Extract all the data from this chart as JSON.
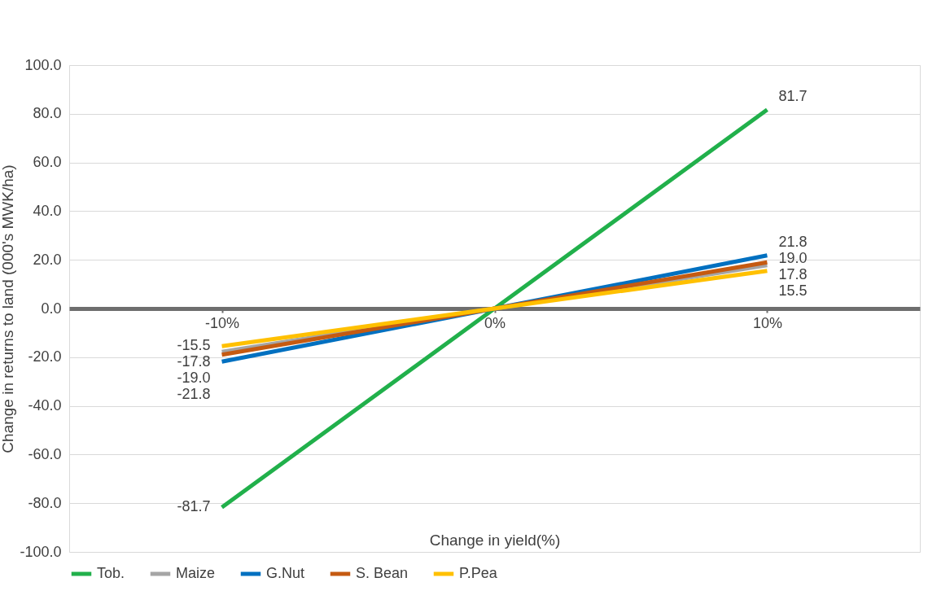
{
  "chart_data": {
    "type": "line",
    "xlabel": "Change in yield(%)",
    "ylabel": "Change in returns to land (000's MWK/ha)",
    "categories": [
      "-10%",
      "0%",
      "10%"
    ],
    "series": [
      {
        "name": "Tob.",
        "color": "#21b04b",
        "values": [
          -81.7,
          0,
          81.7
        ],
        "value_labels": [
          "-81.7",
          null,
          "81.7"
        ]
      },
      {
        "name": "Maize",
        "color": "#a5a5a5",
        "values": [
          -17.8,
          0,
          17.8
        ],
        "value_labels": [
          "-17.8",
          null,
          "17.8"
        ]
      },
      {
        "name": "G.Nut",
        "color": "#0070c0",
        "values": [
          -21.8,
          0,
          21.8
        ],
        "value_labels": [
          "-21.8",
          null,
          "21.8"
        ]
      },
      {
        "name": "S. Bean",
        "color": "#c55a11",
        "values": [
          -19.0,
          0,
          19.0
        ],
        "value_labels": [
          "-19.0",
          null,
          "19.0"
        ]
      },
      {
        "name": "P.Pea",
        "color": "#ffc000",
        "values": [
          -15.5,
          0,
          15.5
        ],
        "value_labels": [
          "-15.5",
          null,
          "15.5"
        ]
      }
    ],
    "ylim": [
      -100,
      100
    ],
    "yticks": [
      {
        "value": -100,
        "label": "-100.0"
      },
      {
        "value": -80,
        "label": "-80.0"
      },
      {
        "value": -60,
        "label": "-60.0"
      },
      {
        "value": -40,
        "label": "-40.0"
      },
      {
        "value": -20,
        "label": "-20.0"
      },
      {
        "value": 0,
        "label": "0.0"
      },
      {
        "value": 20,
        "label": "20.0"
      },
      {
        "value": 40,
        "label": "40.0"
      },
      {
        "value": 60,
        "label": "60.0"
      },
      {
        "value": 80,
        "label": "80.0"
      },
      {
        "value": 100,
        "label": "100.0"
      }
    ],
    "grid": "y",
    "legend": "bottom",
    "marker": "none",
    "line_style": "solid"
  }
}
